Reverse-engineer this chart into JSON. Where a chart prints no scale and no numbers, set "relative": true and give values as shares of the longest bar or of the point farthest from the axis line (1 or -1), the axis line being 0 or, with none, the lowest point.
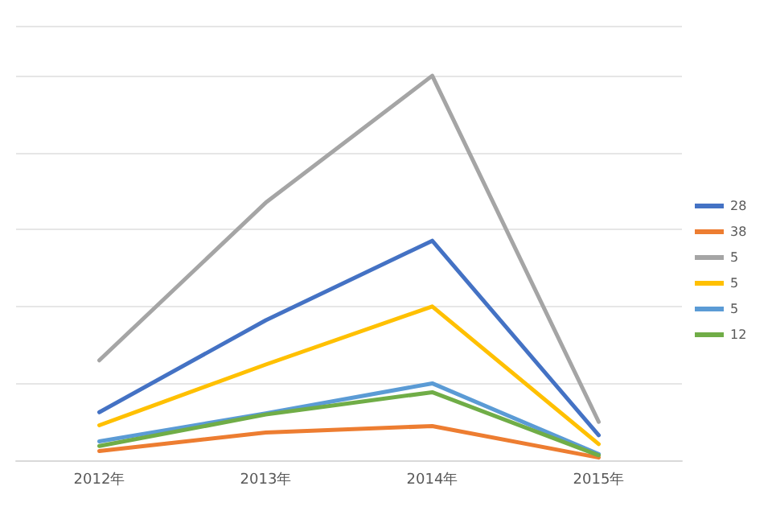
{
  "chart_data": {
    "type": "line",
    "relative": true,
    "categories": [
      "2012年",
      "2013年",
      "2014年",
      "2015年"
    ],
    "series": [
      {
        "name": "28",
        "color": "#4472c4",
        "values": [
          0.125,
          0.364,
          0.571,
          0.065
        ]
      },
      {
        "name": "38",
        "color": "#ed7d31",
        "values": [
          0.024,
          0.072,
          0.089,
          0.007
        ]
      },
      {
        "name": "5",
        "color": "#a5a5a5",
        "values": [
          0.26,
          0.67,
          1,
          0.1
        ]
      },
      {
        "name": "5",
        "color": "#ffc000",
        "values": [
          0.091,
          0.249,
          0.4,
          0.042
        ]
      },
      {
        "name": "5",
        "color": "#5b9bd5",
        "values": [
          0.049,
          0.122,
          0.2,
          0.016
        ]
      },
      {
        "name": "12",
        "color": "#70ad47",
        "values": [
          0.037,
          0.119,
          0.177,
          0.013
        ]
      }
    ],
    "grid": "y",
    "legend": "right",
    "marker": "none",
    "line_style": "solid"
  }
}
